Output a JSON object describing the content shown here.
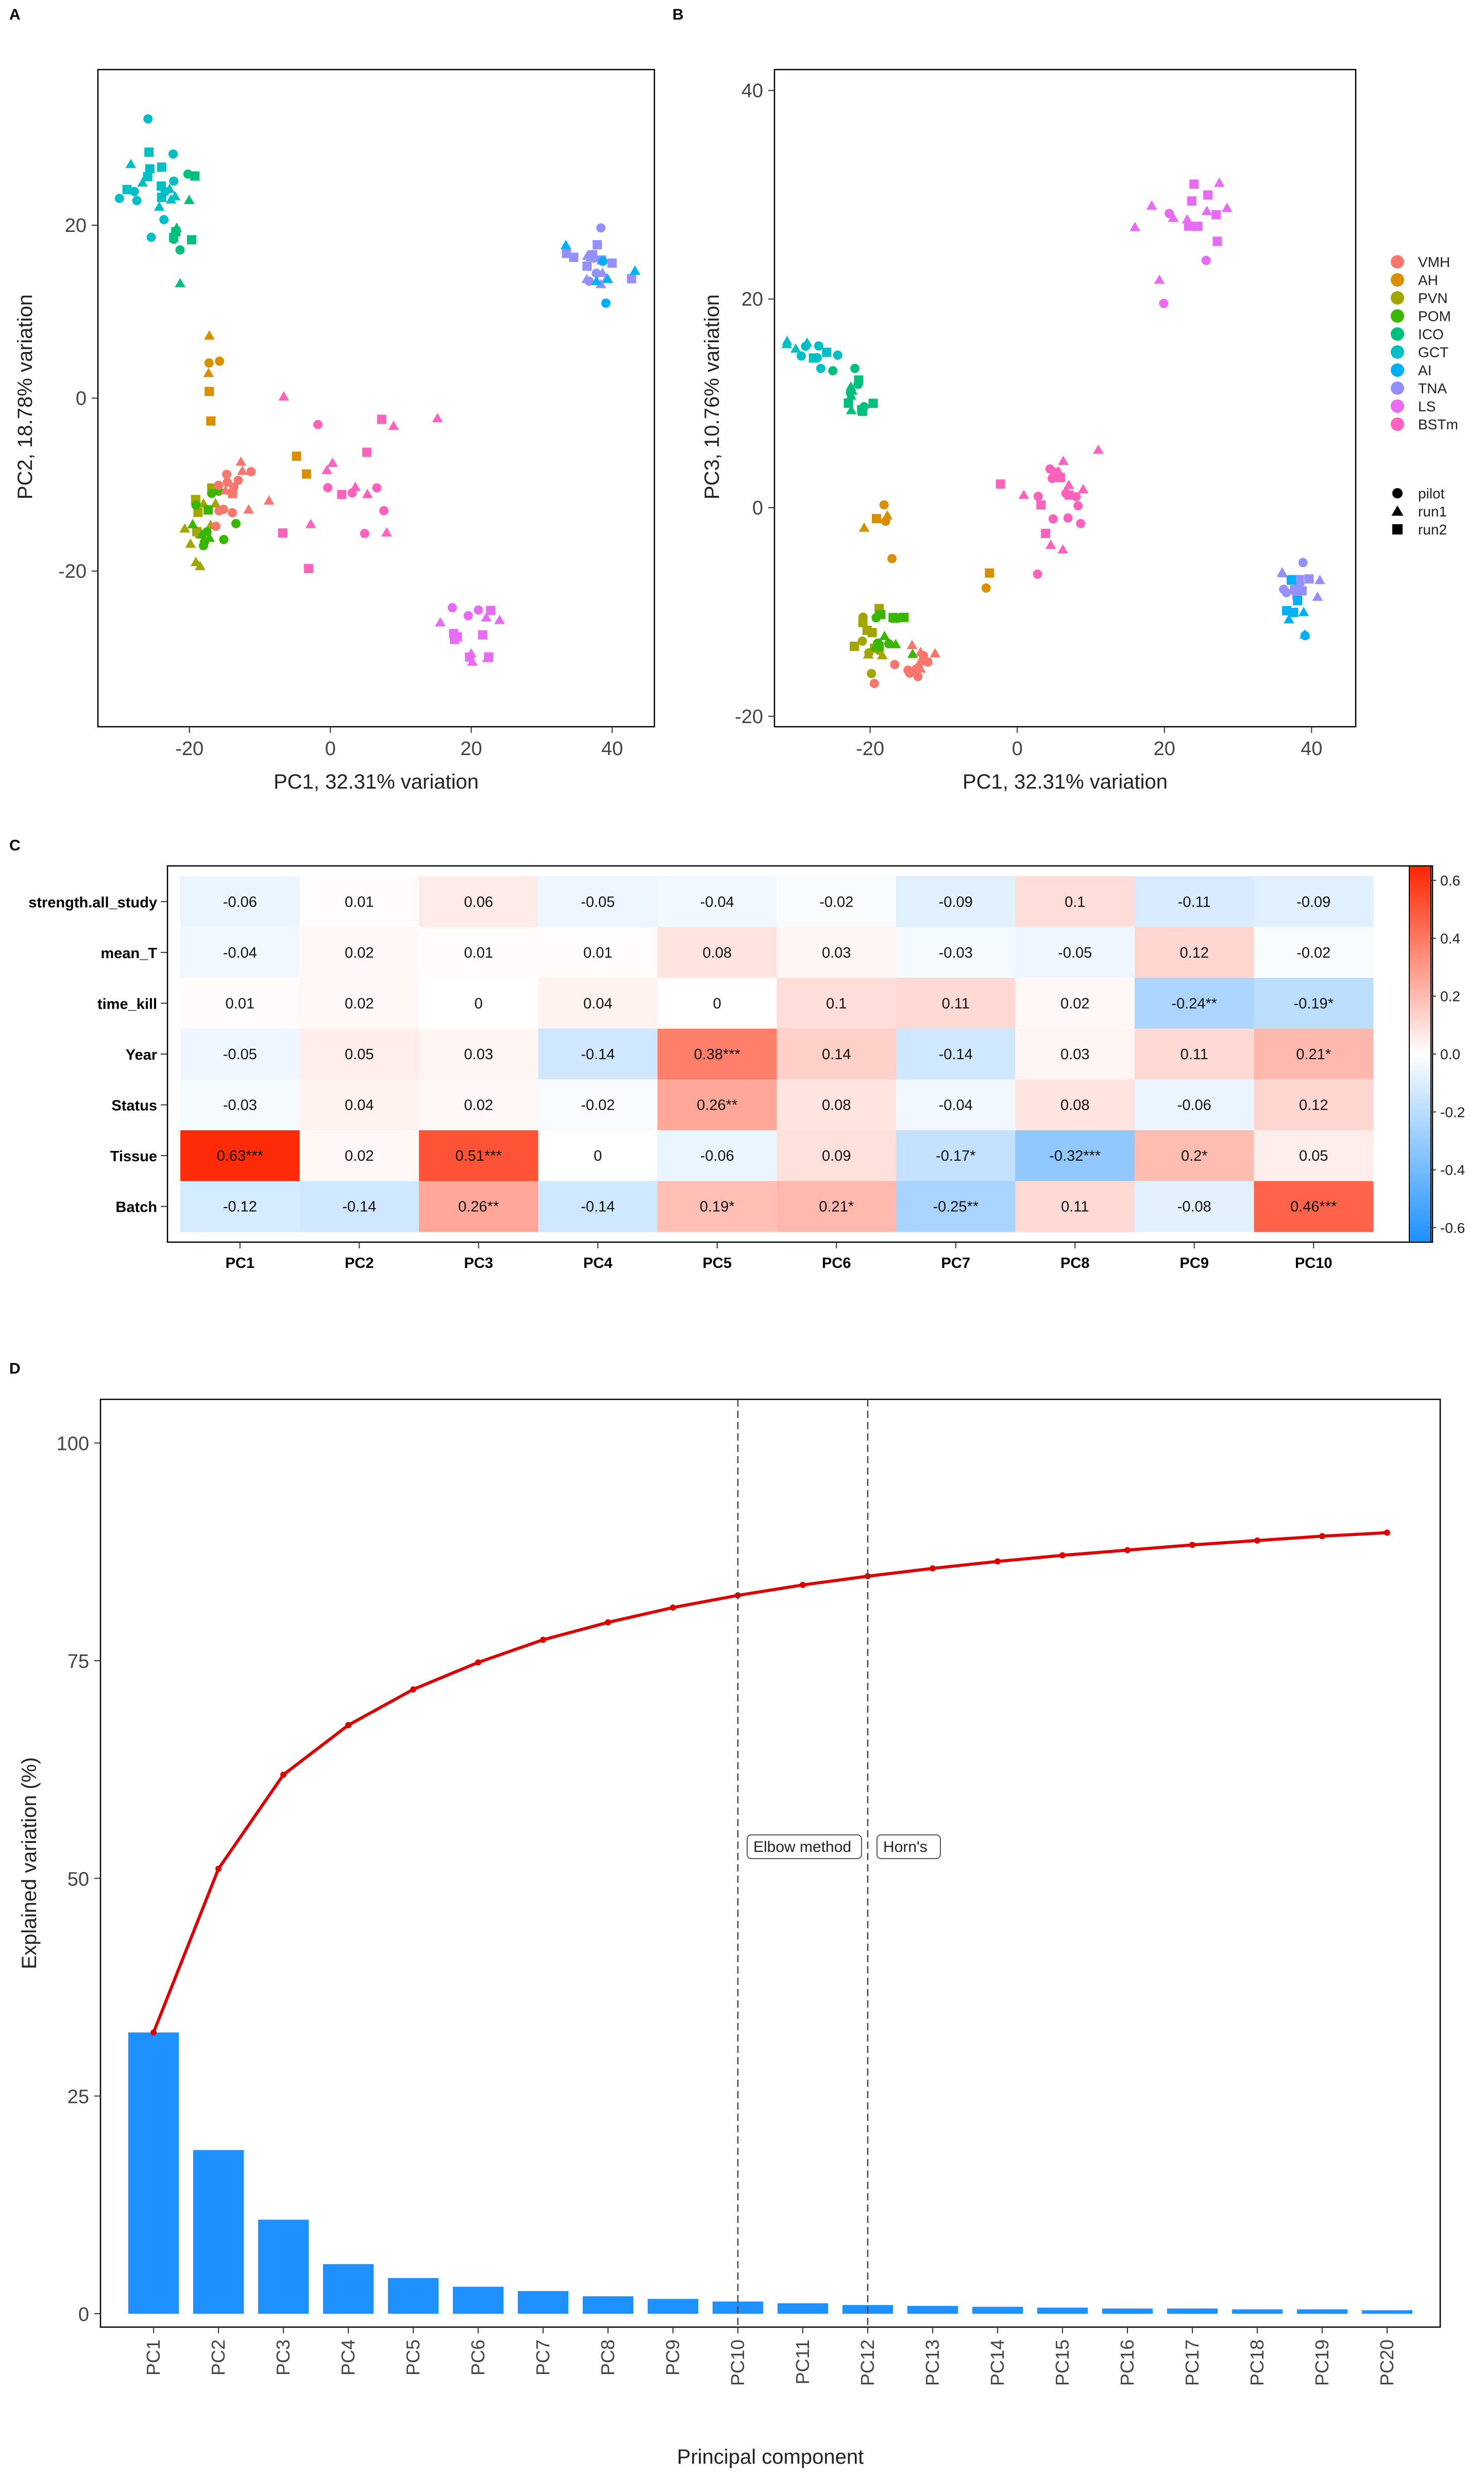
{
  "panels": {
    "a": "A",
    "b": "B",
    "c": "C",
    "d": "D"
  },
  "legend": {
    "tissues": [
      {
        "name": "VMH",
        "color": "#F8766D"
      },
      {
        "name": "AH",
        "color": "#D89000"
      },
      {
        "name": "PVN",
        "color": "#A3A500"
      },
      {
        "name": "POM",
        "color": "#39B600"
      },
      {
        "name": "ICO",
        "color": "#00BF7D"
      },
      {
        "name": "GCT",
        "color": "#00BFC4"
      },
      {
        "name": "AI",
        "color": "#00B0F6"
      },
      {
        "name": "TNA",
        "color": "#9590FF"
      },
      {
        "name": "LS",
        "color": "#E76BF3"
      },
      {
        "name": "BSTm",
        "color": "#FF62BC"
      }
    ],
    "batches": [
      {
        "name": "pilot",
        "shape": "circle"
      },
      {
        "name": "run1",
        "shape": "triangle"
      },
      {
        "name": "run2",
        "shape": "square"
      }
    ]
  },
  "chart_data": [
    {
      "type": "scatter",
      "xlabel": "PC1, 32.31% variation",
      "ylabel": "PC2, 18.78% variation",
      "xlim": [
        -33,
        46
      ],
      "ylim": [
        -38,
        38
      ],
      "xticks": [
        "-20",
        "0",
        "20",
        "40"
      ],
      "yticks": [
        "20",
        "0",
        "-20"
      ],
      "clusters": [
        {
          "tissue": "GCT",
          "cx": -25,
          "cy": 25,
          "sx": 3,
          "sy": 4.5,
          "n": 24
        },
        {
          "tissue": "ICO",
          "cx": -21,
          "cy": 21,
          "sx": 1.5,
          "sy": 4,
          "n": 9
        },
        {
          "tissue": "AH",
          "cx": -17,
          "cy": 2,
          "sx": 1.5,
          "sy": 4,
          "n": 6
        },
        {
          "tissue": "PVN",
          "cx": -19,
          "cy": -14,
          "sx": 1.8,
          "sy": 3,
          "n": 12
        },
        {
          "tissue": "POM",
          "cx": -17,
          "cy": -15,
          "sx": 1.8,
          "sy": 3,
          "n": 12
        },
        {
          "tissue": "VMH",
          "cx": -14,
          "cy": -12,
          "sx": 2.5,
          "sy": 3,
          "n": 16
        },
        {
          "tissue": "AH",
          "cx": -5,
          "cy": -7,
          "sx": 1,
          "sy": 1,
          "n": 2
        },
        {
          "tissue": "BSTm",
          "cx": 2,
          "cy": -10,
          "sx": 7,
          "sy": 5,
          "n": 20
        },
        {
          "tissue": "LS",
          "cx": 21,
          "cy": -27,
          "sx": 4,
          "sy": 4,
          "n": 16
        },
        {
          "tissue": "TNA",
          "cx": 37,
          "cy": 16,
          "sx": 2.5,
          "sy": 2.5,
          "n": 18
        },
        {
          "tissue": "AI",
          "cx": 39,
          "cy": 14,
          "sx": 2,
          "sy": 4,
          "n": 6
        }
      ]
    },
    {
      "type": "scatter",
      "xlabel": "PC1, 32.31% variation",
      "ylabel": "PC3, 10.76% variation",
      "xlim": [
        -33,
        46
      ],
      "ylim": [
        -21,
        42
      ],
      "xticks": [
        "-20",
        "0",
        "20",
        "40"
      ],
      "yticks": [
        "40",
        "20",
        "0",
        "-20"
      ],
      "clusters": [
        {
          "tissue": "GCT",
          "cx": -28,
          "cy": 15,
          "sx": 2,
          "sy": 1.2,
          "n": 12
        },
        {
          "tissue": "ICO",
          "cx": -22,
          "cy": 11,
          "sx": 1.5,
          "sy": 1.3,
          "n": 14
        },
        {
          "tissue": "AH",
          "cx": -18,
          "cy": -1,
          "sx": 1.5,
          "sy": 2,
          "n": 6
        },
        {
          "tissue": "PVN",
          "cx": -20,
          "cy": -13,
          "sx": 1.5,
          "sy": 1.5,
          "n": 14
        },
        {
          "tissue": "POM",
          "cx": -17,
          "cy": -12,
          "sx": 2,
          "sy": 2,
          "n": 12
        },
        {
          "tissue": "VMH",
          "cx": -14,
          "cy": -15,
          "sx": 2,
          "sy": 1.5,
          "n": 14
        },
        {
          "tissue": "AH",
          "cx": -4,
          "cy": -5,
          "sx": 1,
          "sy": 1.5,
          "n": 2
        },
        {
          "tissue": "BSTm",
          "cx": 4,
          "cy": 1,
          "sx": 4,
          "sy": 3.5,
          "n": 24
        },
        {
          "tissue": "LS",
          "cx": 22,
          "cy": 27,
          "sx": 3.5,
          "sy": 5.5,
          "n": 18
        },
        {
          "tissue": "TNA",
          "cx": 38,
          "cy": -8,
          "sx": 2,
          "sy": 2,
          "n": 16
        },
        {
          "tissue": "AI",
          "cx": 38,
          "cy": -10,
          "sx": 2.5,
          "sy": 2,
          "n": 8
        }
      ]
    },
    {
      "type": "heatmap",
      "rows": [
        "strength.all_study",
        "mean_T",
        "time_kill",
        "Year",
        "Status",
        "Tissue",
        "Batch"
      ],
      "cols": [
        "PC1",
        "PC2",
        "PC3",
        "PC4",
        "PC5",
        "PC6",
        "PC7",
        "PC8",
        "PC9",
        "PC10"
      ],
      "values": [
        [
          -0.06,
          0.01,
          0.06,
          -0.05,
          -0.04,
          -0.02,
          -0.09,
          0.1,
          -0.11,
          -0.09
        ],
        [
          -0.04,
          0.02,
          0.01,
          0.01,
          0.08,
          0.03,
          -0.03,
          -0.05,
          0.12,
          -0.02
        ],
        [
          0.01,
          0.02,
          0,
          0.04,
          0,
          0.1,
          0.11,
          0.02,
          -0.24,
          -0.19
        ],
        [
          -0.05,
          0.05,
          0.03,
          -0.14,
          0.38,
          0.14,
          -0.14,
          0.03,
          0.11,
          0.21
        ],
        [
          -0.03,
          0.04,
          0.02,
          -0.02,
          0.26,
          0.08,
          -0.04,
          0.08,
          -0.06,
          0.12
        ],
        [
          0.63,
          0.02,
          0.51,
          0,
          -0.06,
          0.09,
          -0.17,
          -0.32,
          0.2,
          0.05
        ],
        [
          -0.12,
          -0.14,
          0.26,
          -0.14,
          0.19,
          0.21,
          -0.25,
          0.11,
          -0.08,
          0.46
        ]
      ],
      "labels": [
        [
          "-0.06",
          "0.01",
          "0.06",
          "-0.05",
          "-0.04",
          "-0.02",
          "-0.09",
          "0.1",
          "-0.11",
          "-0.09"
        ],
        [
          "-0.04",
          "0.02",
          "0.01",
          "0.01",
          "0.08",
          "0.03",
          "-0.03",
          "-0.05",
          "0.12",
          "-0.02"
        ],
        [
          "0.01",
          "0.02",
          "0",
          "0.04",
          "0",
          "0.1",
          "0.11",
          "0.02",
          "-0.24**",
          "-0.19*"
        ],
        [
          "-0.05",
          "0.05",
          "0.03",
          "-0.14",
          "0.38***",
          "0.14",
          "-0.14",
          "0.03",
          "0.11",
          "0.21*"
        ],
        [
          "-0.03",
          "0.04",
          "0.02",
          "-0.02",
          "0.26**",
          "0.08",
          "-0.04",
          "0.08",
          "-0.06",
          "0.12"
        ],
        [
          "0.63***",
          "0.02",
          "0.51***",
          "0",
          "-0.06",
          "0.09",
          "-0.17*",
          "-0.32***",
          "0.2*",
          "0.05"
        ],
        [
          "-0.12",
          "-0.14",
          "0.26**",
          "-0.14",
          "0.19*",
          "0.21*",
          "-0.25**",
          "0.11",
          "-0.08",
          "0.46***"
        ]
      ],
      "colorbar": {
        "range": [
          -0.65,
          0.65
        ],
        "ticks": [
          0.6,
          0.4,
          0.2,
          0.0,
          -0.2,
          -0.4,
          -0.6
        ],
        "tick_labels": [
          "0.6",
          "0.4",
          "0.2",
          "0.0",
          "-0.2",
          "-0.4",
          "-0.6"
        ],
        "low": "#1E90FF",
        "mid": "#FFFFFF",
        "high": "#FF2400"
      }
    },
    {
      "type": "bar",
      "xlabel": "Principal component",
      "ylabel": "Explained variation (%)",
      "ylim": [
        0,
        103
      ],
      "yticks": [
        "0",
        "25",
        "50",
        "75",
        "100"
      ],
      "categories": [
        "PC1",
        "PC2",
        "PC3",
        "PC4",
        "PC5",
        "PC6",
        "PC7",
        "PC8",
        "PC9",
        "PC10",
        "PC11",
        "PC12",
        "PC13",
        "PC14",
        "PC15",
        "PC16",
        "PC17",
        "PC18",
        "PC19",
        "PC20"
      ],
      "bar_values": [
        32.3,
        18.8,
        10.8,
        5.7,
        4.1,
        3.1,
        2.6,
        2.0,
        1.7,
        1.4,
        1.2,
        1.0,
        0.9,
        0.8,
        0.7,
        0.6,
        0.6,
        0.5,
        0.5,
        0.4
      ],
      "cumulative": [
        32.3,
        51.1,
        61.9,
        67.6,
        71.7,
        74.8,
        77.4,
        79.4,
        81.1,
        82.5,
        83.7,
        84.7,
        85.6,
        86.4,
        87.1,
        87.7,
        88.3,
        88.8,
        89.3,
        89.7
      ],
      "bar_color": "#1E90FF",
      "line_color": "#DD0000",
      "annotations": [
        {
          "label": "Elbow method",
          "at": "PC10"
        },
        {
          "label": "Horn's",
          "at": "PC12"
        }
      ]
    }
  ]
}
